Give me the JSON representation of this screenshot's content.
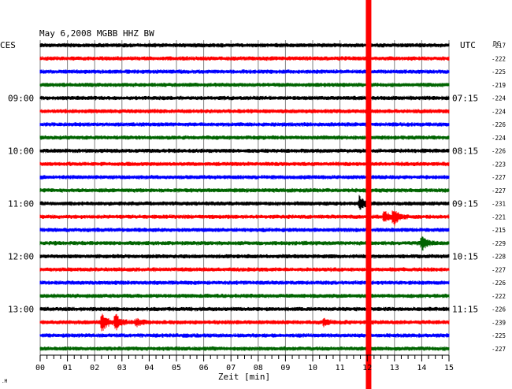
{
  "chart_data": {
    "type": "helicorder",
    "title": "May 6,2008   MGBB HHZ BW",
    "left_axis_label": "CES",
    "right_axis_label": "UTC",
    "dc_label": "DC",
    "xlabel": "Zeit [min]",
    "x_ticks": [
      "00",
      "01",
      "02",
      "03",
      "04",
      "05",
      "06",
      "07",
      "08",
      "09",
      "10",
      "11",
      "12",
      "13",
      "14",
      "15"
    ],
    "x_range": [
      0,
      15
    ],
    "minor_ticks_per_minute": 4,
    "lines_per_hour": 4,
    "trace_colors": [
      "#000000",
      "#ff0000",
      "#0000ff",
      "#006400"
    ],
    "left_time_labels": [
      {
        "line": 4,
        "label": "09:00"
      },
      {
        "line": 8,
        "label": "10:00"
      },
      {
        "line": 12,
        "label": "11:00"
      },
      {
        "line": 16,
        "label": "12:00"
      },
      {
        "line": 20,
        "label": "13:00"
      }
    ],
    "right_time_labels": [
      {
        "line": 4,
        "label": "07:15"
      },
      {
        "line": 8,
        "label": "08:15"
      },
      {
        "line": 12,
        "label": "09:15"
      },
      {
        "line": 16,
        "label": "10:15"
      },
      {
        "line": 20,
        "label": "11:15"
      }
    ],
    "dc_offsets": [
      "-217",
      "-222",
      "-225",
      "-219",
      "-224",
      "-224",
      "-226",
      "-224",
      "-226",
      "-223",
      "-227",
      "-227",
      "-231",
      "-221",
      "-215",
      "-229",
      "-228",
      "-227",
      "-226",
      "-222",
      "-226",
      "-239",
      "-225",
      "-227"
    ],
    "current_time_marker_min": 12.05,
    "marker_color": "#ff0000",
    "events": [
      {
        "line": 12,
        "minute": 11.7,
        "amplitude": 2.2
      },
      {
        "line": 13,
        "minute": 12.6,
        "amplitude": 1.8
      },
      {
        "line": 13,
        "minute": 12.95,
        "amplitude": 3.0
      },
      {
        "line": 15,
        "minute": 14.0,
        "amplitude": 2.2
      },
      {
        "line": 21,
        "minute": 2.25,
        "amplitude": 3.2
      },
      {
        "line": 21,
        "minute": 2.75,
        "amplitude": 2.8
      },
      {
        "line": 21,
        "minute": 3.5,
        "amplitude": 1.2
      },
      {
        "line": 21,
        "minute": 10.4,
        "amplitude": 1.0
      }
    ],
    "grid": true
  },
  "footer_mark": ".M"
}
